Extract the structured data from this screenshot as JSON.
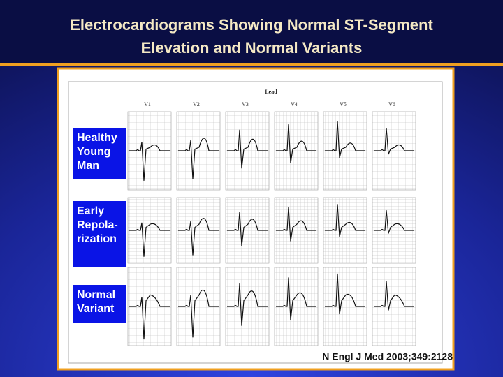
{
  "header": {
    "title_lines": [
      "Electrocardiograms Showing Normal ST-Segment",
      "Elevation and Normal Variants"
    ]
  },
  "figure": {
    "lead_heading": "Lead",
    "leads": [
      "V1",
      "V2",
      "V3",
      "V4",
      "V5",
      "V6"
    ],
    "rows": [
      {
        "label_lines": [
          "Healthy",
          "Young",
          "Man"
        ]
      },
      {
        "label_lines": [
          "Early",
          "Repola-",
          "rization"
        ]
      },
      {
        "label_lines": [
          "Normal",
          "Variant"
        ]
      }
    ]
  },
  "citation": "N Engl J Med 2003;349:2128"
}
